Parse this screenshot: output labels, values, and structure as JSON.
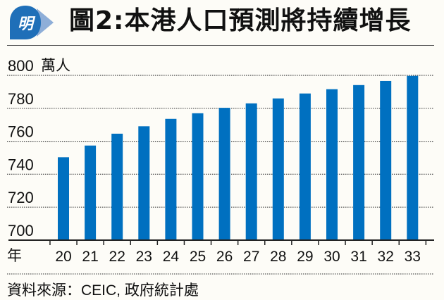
{
  "header": {
    "logo_text": "明",
    "title": "圖2:本港人口預測將持續增長"
  },
  "colors": {
    "bar": "#0070c0",
    "logo": "#1f6fb8",
    "logo_tail": "#8eaed8"
  },
  "chart_data": {
    "type": "bar",
    "title": "圖2:本港人口預測將持續增長",
    "ylabel": "萬人",
    "xlabel": "年",
    "categories": [
      "20",
      "21",
      "22",
      "23",
      "24",
      "25",
      "26",
      "27",
      "28",
      "29",
      "30",
      "31",
      "32",
      "33"
    ],
    "values": [
      750.3,
      757.4,
      764.6,
      769.1,
      773.6,
      777.0,
      780.3,
      783.0,
      786.0,
      789.0,
      791.6,
      794.1,
      796.6,
      799.7
    ],
    "ylim": [
      700,
      800
    ],
    "yticks": [
      "700",
      "720",
      "740",
      "760",
      "780",
      "800"
    ],
    "grid": true
  },
  "footer": {
    "source": "資料來源：CEIC, 政府統計處"
  }
}
